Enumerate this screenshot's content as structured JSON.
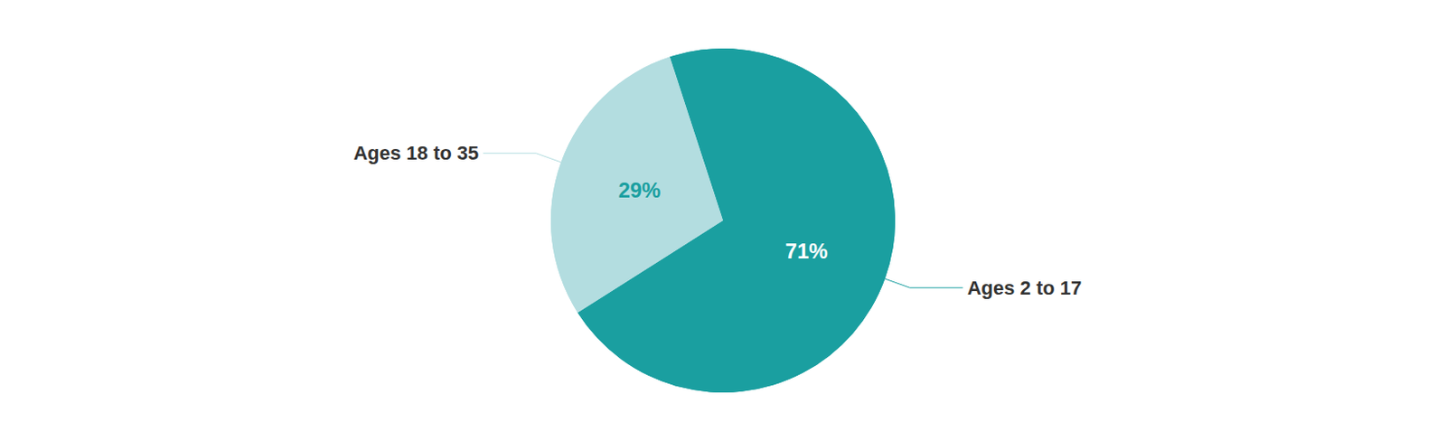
{
  "chart_data": {
    "type": "pie",
    "categories": [
      "Ages 2 to 17",
      "Ages 18 to 35"
    ],
    "values": [
      71,
      29
    ],
    "value_labels": [
      "71%",
      "29%"
    ],
    "data_labels": true,
    "colors": [
      "#1a9fa0",
      "#b3dde0"
    ],
    "legend": false
  }
}
